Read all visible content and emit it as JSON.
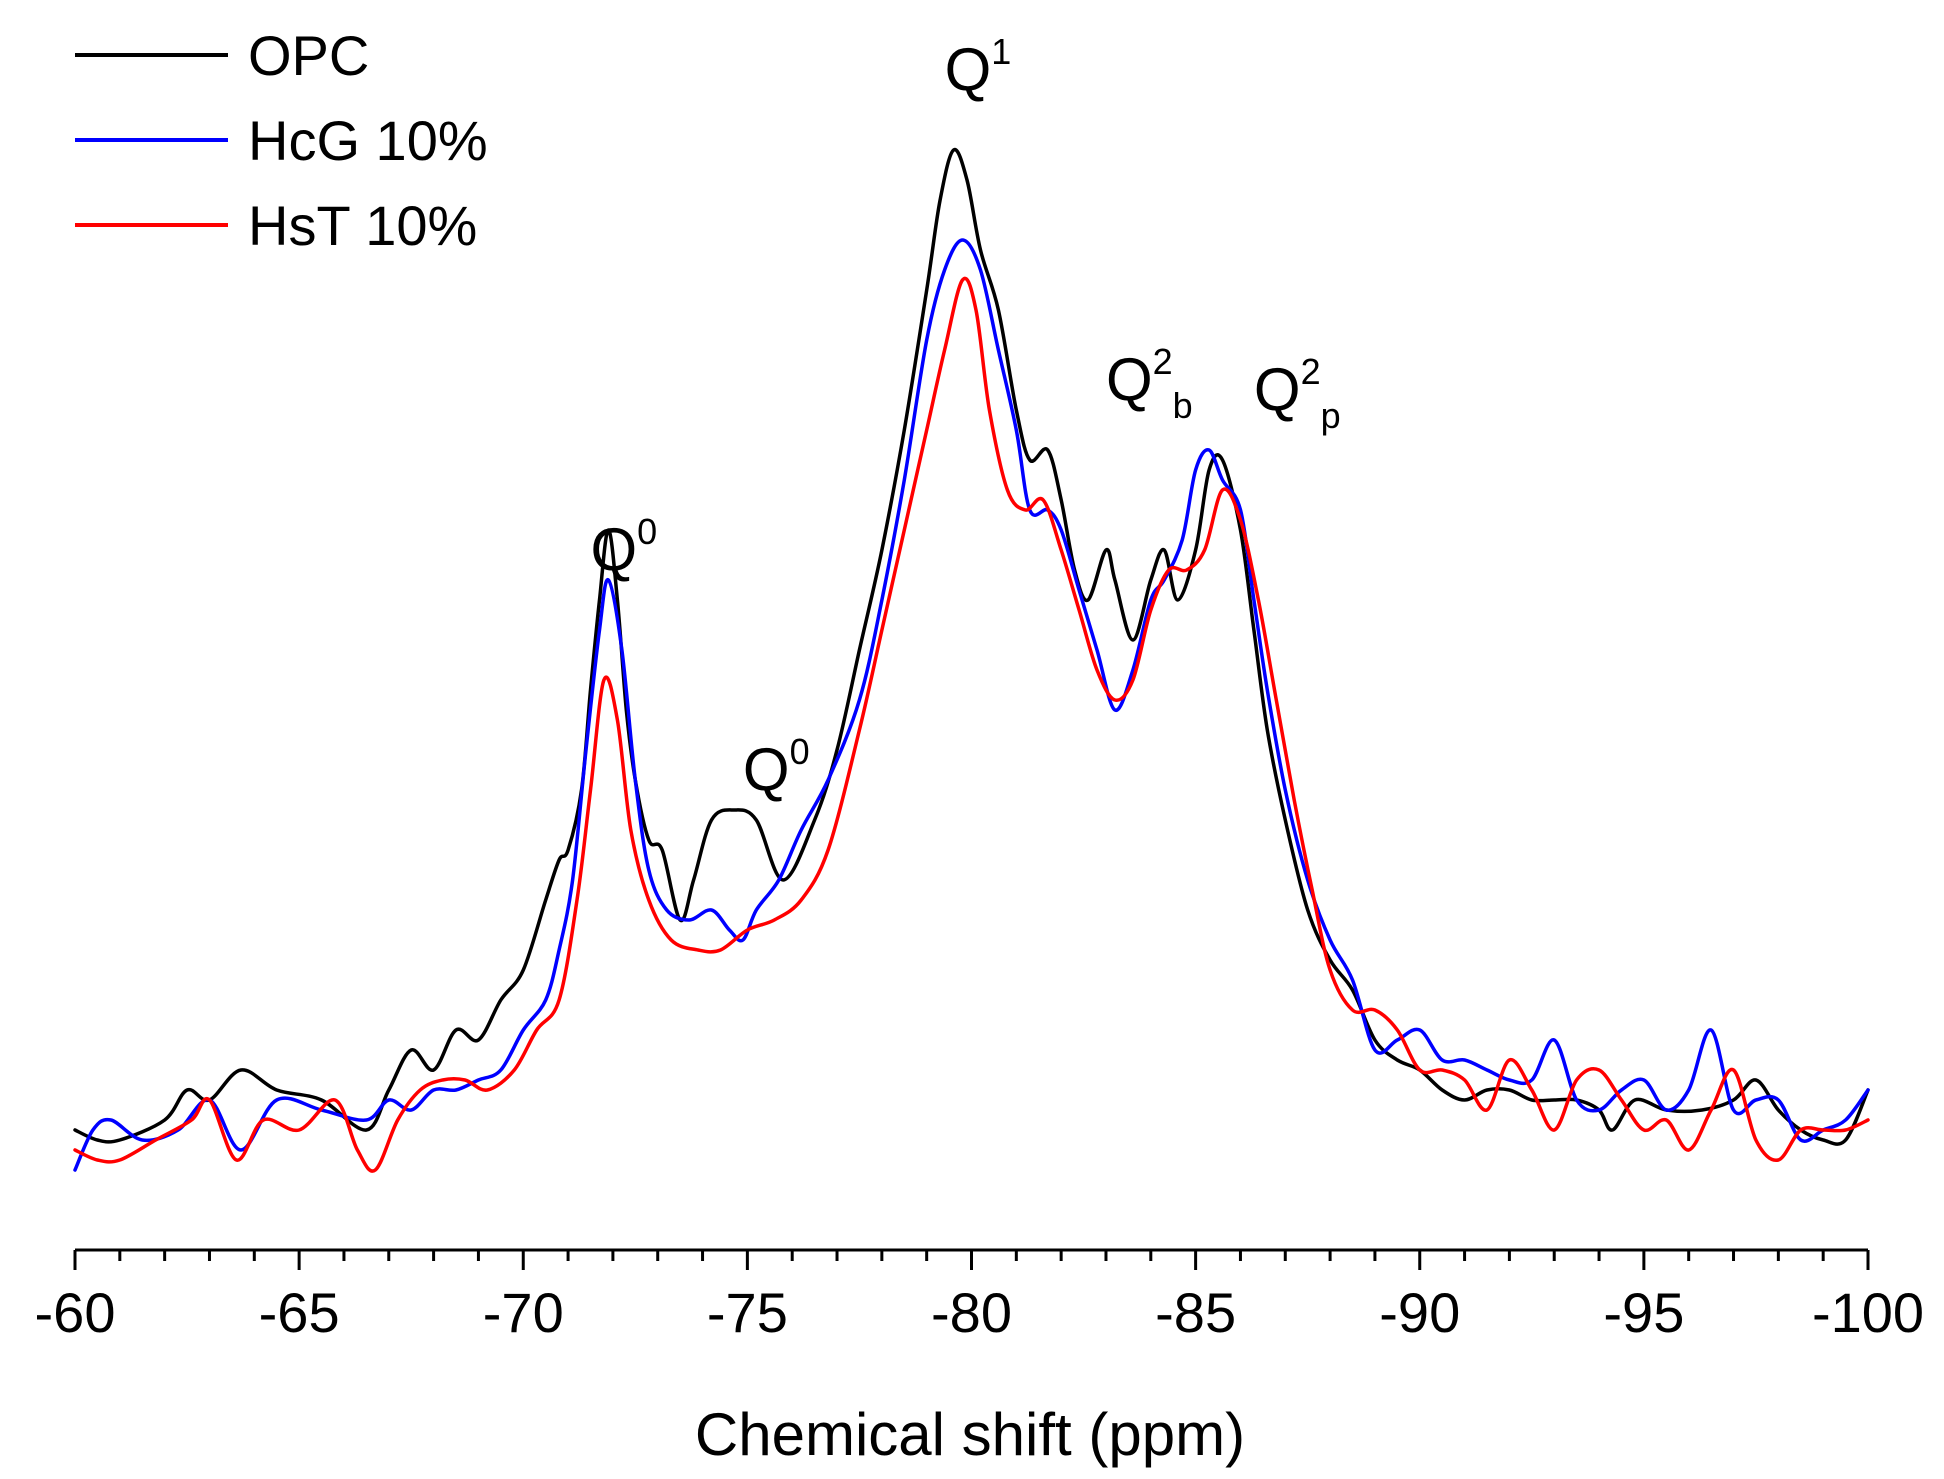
{
  "chart_data": {
    "type": "line",
    "title": "",
    "xlabel": "Chemical shift (ppm)",
    "ylabel": "",
    "xlim": [
      -60,
      -100
    ],
    "ylim": [
      -0.1,
      1.12
    ],
    "x_ticks": [
      -60,
      -65,
      -70,
      -75,
      -80,
      -85,
      -90,
      -95,
      -100
    ],
    "x_tick_labels": [
      "-60",
      "-65",
      "-70",
      "-75",
      "-80",
      "-85",
      "-90",
      "-95",
      "-100"
    ],
    "x_minor_step": 1,
    "legend": {
      "placement": "top-left"
    },
    "annotations": [
      {
        "base": "Q",
        "sup": "0",
        "sub": "",
        "x": -71.5,
        "y": 0.58
      },
      {
        "base": "Q",
        "sup": "0",
        "sub": "",
        "x": -74.9,
        "y": 0.36
      },
      {
        "base": "Q",
        "sup": "1",
        "sub": "",
        "x": -79.4,
        "y": 1.06
      },
      {
        "base": "Q",
        "sup": "2",
        "sub": "b",
        "x": -83.0,
        "y": 0.75
      },
      {
        "base": "Q",
        "sup": "2",
        "sub": "p",
        "x": -86.3,
        "y": 0.74
      }
    ],
    "series": [
      {
        "name": "OPC",
        "color": "#000000",
        "x": [
          -60,
          -60.5,
          -61,
          -62,
          -62.5,
          -63,
          -63.7,
          -64.5,
          -65.5,
          -66.5,
          -67,
          -67.5,
          -68,
          -68.5,
          -69,
          -69.5,
          -70,
          -70.5,
          -70.8,
          -71,
          -71.3,
          -71.5,
          -71.7,
          -71.9,
          -72.1,
          -72.3,
          -72.5,
          -72.8,
          -73.1,
          -73.5,
          -73.8,
          -74.2,
          -74.7,
          -75.2,
          -75.8,
          -76.5,
          -77,
          -77.5,
          -78,
          -78.5,
          -79,
          -79.3,
          -79.6,
          -79.9,
          -80.2,
          -80.6,
          -81,
          -81.3,
          -81.7,
          -82,
          -82.3,
          -82.6,
          -83,
          -83.2,
          -83.6,
          -84,
          -84.3,
          -84.6,
          -85,
          -85.3,
          -85.6,
          -86,
          -86.3,
          -86.6,
          -87,
          -87.5,
          -88,
          -88.5,
          -89,
          -89.5,
          -90,
          -90.5,
          -91,
          -91.5,
          -92,
          -92.5,
          -93,
          -93.5,
          -94,
          -94.3,
          -94.8,
          -95.5,
          -96.3,
          -97,
          -97.5,
          -98,
          -98.5,
          -99,
          -99.5,
          -100
        ],
        "y": [
          0.02,
          0.01,
          0.01,
          0.03,
          0.06,
          0.05,
          0.08,
          0.06,
          0.05,
          0.02,
          0.06,
          0.1,
          0.08,
          0.12,
          0.11,
          0.15,
          0.18,
          0.25,
          0.29,
          0.3,
          0.36,
          0.46,
          0.55,
          0.62,
          0.55,
          0.44,
          0.37,
          0.31,
          0.3,
          0.23,
          0.27,
          0.33,
          0.34,
          0.33,
          0.27,
          0.33,
          0.4,
          0.5,
          0.6,
          0.72,
          0.86,
          0.95,
          1.0,
          0.97,
          0.9,
          0.84,
          0.74,
          0.69,
          0.7,
          0.65,
          0.58,
          0.55,
          0.6,
          0.57,
          0.51,
          0.57,
          0.6,
          0.55,
          0.6,
          0.68,
          0.69,
          0.62,
          0.52,
          0.42,
          0.33,
          0.24,
          0.19,
          0.16,
          0.11,
          0.09,
          0.08,
          0.06,
          0.05,
          0.06,
          0.06,
          0.05,
          0.05,
          0.05,
          0.04,
          0.02,
          0.05,
          0.04,
          0.04,
          0.05,
          0.07,
          0.04,
          0.02,
          0.01,
          0.01,
          0.06
        ]
      },
      {
        "name": "HcG 10%",
        "color": "#0000ff",
        "x": [
          -60,
          -60.4,
          -60.8,
          -61.5,
          -62.3,
          -63,
          -63.7,
          -64.5,
          -65.5,
          -66.5,
          -67,
          -67.5,
          -68,
          -68.5,
          -69,
          -69.5,
          -70,
          -70.5,
          -70.8,
          -71.1,
          -71.4,
          -71.7,
          -71.9,
          -72.2,
          -72.5,
          -72.8,
          -73.2,
          -73.7,
          -74.2,
          -74.6,
          -74.9,
          -75.2,
          -75.7,
          -76.2,
          -76.8,
          -77.5,
          -78,
          -78.5,
          -79,
          -79.4,
          -79.8,
          -80.2,
          -80.6,
          -81,
          -81.3,
          -81.7,
          -82,
          -82.4,
          -82.8,
          -83.2,
          -83.6,
          -84,
          -84.3,
          -84.7,
          -85,
          -85.3,
          -85.6,
          -86,
          -86.3,
          -86.6,
          -87,
          -87.5,
          -88,
          -88.5,
          -89,
          -89.5,
          -90,
          -90.5,
          -91,
          -91.5,
          -92,
          -92.5,
          -93,
          -93.5,
          -94,
          -94.5,
          -95,
          -95.5,
          -96,
          -96.5,
          -97,
          -97.5,
          -98,
          -98.5,
          -99,
          -99.5,
          -100
        ],
        "y": [
          -0.02,
          0.02,
          0.03,
          0.01,
          0.02,
          0.05,
          0.0,
          0.05,
          0.04,
          0.03,
          0.05,
          0.04,
          0.06,
          0.06,
          0.07,
          0.08,
          0.12,
          0.15,
          0.2,
          0.27,
          0.4,
          0.52,
          0.57,
          0.5,
          0.37,
          0.28,
          0.24,
          0.23,
          0.24,
          0.22,
          0.21,
          0.24,
          0.27,
          0.32,
          0.37,
          0.45,
          0.55,
          0.67,
          0.81,
          0.88,
          0.91,
          0.88,
          0.8,
          0.72,
          0.64,
          0.64,
          0.62,
          0.56,
          0.5,
          0.44,
          0.48,
          0.55,
          0.57,
          0.61,
          0.68,
          0.7,
          0.67,
          0.64,
          0.55,
          0.46,
          0.36,
          0.27,
          0.21,
          0.17,
          0.1,
          0.11,
          0.12,
          0.09,
          0.09,
          0.08,
          0.07,
          0.07,
          0.11,
          0.05,
          0.04,
          0.06,
          0.07,
          0.04,
          0.06,
          0.12,
          0.04,
          0.05,
          0.05,
          0.01,
          0.02,
          0.03,
          0.06
        ]
      },
      {
        "name": "HsT 10%",
        "color": "#ff0000",
        "x": [
          -60,
          -60.5,
          -61,
          -61.8,
          -62.6,
          -63,
          -63.6,
          -64.2,
          -65,
          -65.8,
          -66.3,
          -66.7,
          -67.2,
          -67.7,
          -68.2,
          -68.7,
          -69.2,
          -69.8,
          -70.3,
          -70.8,
          -71.2,
          -71.5,
          -71.8,
          -72.1,
          -72.4,
          -72.8,
          -73.3,
          -73.9,
          -74.4,
          -75,
          -75.6,
          -76.2,
          -76.8,
          -77.5,
          -78,
          -78.5,
          -79,
          -79.4,
          -79.8,
          -80.1,
          -80.4,
          -80.8,
          -81.2,
          -81.6,
          -82,
          -82.4,
          -82.8,
          -83.2,
          -83.6,
          -84,
          -84.4,
          -84.8,
          -85.2,
          -85.6,
          -86,
          -86.4,
          -86.8,
          -87.2,
          -87.6,
          -88,
          -88.5,
          -89,
          -89.5,
          -90,
          -90.5,
          -91,
          -91.5,
          -92,
          -92.5,
          -93,
          -93.5,
          -94,
          -94.5,
          -95,
          -95.5,
          -96,
          -96.5,
          -97,
          -97.5,
          -98,
          -98.5,
          -99,
          -99.5,
          -100
        ],
        "y": [
          0.0,
          -0.01,
          -0.01,
          0.01,
          0.03,
          0.05,
          -0.01,
          0.03,
          0.02,
          0.05,
          0.0,
          -0.02,
          0.03,
          0.06,
          0.07,
          0.07,
          0.06,
          0.08,
          0.12,
          0.15,
          0.25,
          0.36,
          0.47,
          0.43,
          0.32,
          0.25,
          0.21,
          0.2,
          0.2,
          0.22,
          0.23,
          0.25,
          0.3,
          0.42,
          0.52,
          0.62,
          0.72,
          0.8,
          0.87,
          0.84,
          0.74,
          0.66,
          0.64,
          0.65,
          0.6,
          0.54,
          0.48,
          0.45,
          0.47,
          0.54,
          0.58,
          0.58,
          0.6,
          0.66,
          0.63,
          0.55,
          0.45,
          0.35,
          0.26,
          0.18,
          0.14,
          0.14,
          0.12,
          0.08,
          0.08,
          0.07,
          0.04,
          0.09,
          0.06,
          0.02,
          0.07,
          0.08,
          0.05,
          0.02,
          0.03,
          0.0,
          0.04,
          0.08,
          0.01,
          -0.01,
          0.02,
          0.02,
          0.02,
          0.03
        ]
      }
    ]
  }
}
